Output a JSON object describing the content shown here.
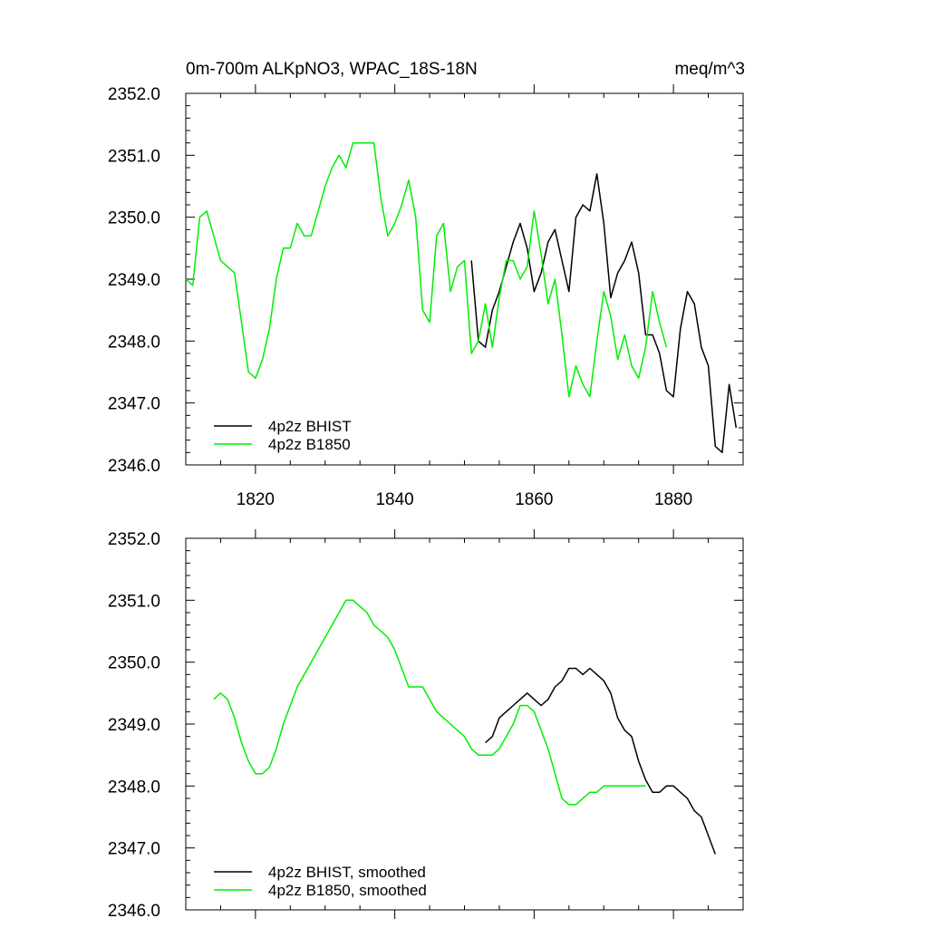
{
  "colors": {
    "bhist": "#000000",
    "b1850": "#00ee00"
  },
  "chart_data": [
    {
      "type": "line",
      "title": "0m-700m ALKpNO3, WPAC_18S-18N",
      "units": "meq/m^3",
      "xlim": [
        1810,
        1890
      ],
      "ylim": [
        2346.0,
        2352.0
      ],
      "x_ticks": [
        1820,
        1840,
        1860,
        1880
      ],
      "x_tick_labels": [
        "1820",
        "1840",
        "1860",
        "1880"
      ],
      "y_ticks": [
        2346.0,
        2347.0,
        2348.0,
        2349.0,
        2350.0,
        2351.0,
        2352.0
      ],
      "y_tick_labels": [
        "2346.0",
        "2347.0",
        "2348.0",
        "2349.0",
        "2350.0",
        "2351.0",
        "2352.0"
      ],
      "legend_position": "bottom-left",
      "series": [
        {
          "name": "4p2z BHIST",
          "color": "#000000",
          "x": [
            1851,
            1852,
            1853,
            1854,
            1855,
            1856,
            1857,
            1858,
            1859,
            1860,
            1861,
            1862,
            1863,
            1864,
            1865,
            1866,
            1867,
            1868,
            1869,
            1870,
            1871,
            1872,
            1873,
            1874,
            1875,
            1876,
            1877,
            1878,
            1879,
            1880,
            1881,
            1882,
            1883,
            1884,
            1885,
            1886,
            1887,
            1888,
            1889
          ],
          "values": [
            2349.3,
            2348.0,
            2347.9,
            2348.5,
            2348.8,
            2349.2,
            2349.6,
            2349.9,
            2349.5,
            2348.8,
            2349.1,
            2349.6,
            2349.8,
            2349.3,
            2348.8,
            2350.0,
            2350.2,
            2350.1,
            2350.7,
            2349.9,
            2348.7,
            2349.1,
            2349.3,
            2349.6,
            2349.1,
            2348.1,
            2348.1,
            2347.8,
            2347.2,
            2347.1,
            2348.2,
            2348.8,
            2348.6,
            2347.9,
            2347.6,
            2346.3,
            2346.2,
            2347.3,
            2346.6
          ]
        },
        {
          "name": "4p2z B1850",
          "color": "#00ee00",
          "x": [
            1810,
            1811,
            1812,
            1813,
            1814,
            1815,
            1816,
            1817,
            1818,
            1819,
            1820,
            1821,
            1822,
            1823,
            1824,
            1825,
            1826,
            1827,
            1828,
            1829,
            1830,
            1831,
            1832,
            1833,
            1834,
            1835,
            1836,
            1837,
            1838,
            1839,
            1840,
            1841,
            1842,
            1843,
            1844,
            1845,
            1846,
            1847,
            1848,
            1849,
            1850,
            1851,
            1852,
            1853,
            1854,
            1855,
            1856,
            1857,
            1858,
            1859,
            1860,
            1861,
            1862,
            1863,
            1864,
            1865,
            1866,
            1867,
            1868,
            1869,
            1870,
            1871,
            1872,
            1873,
            1874,
            1875,
            1876,
            1877,
            1878,
            1879
          ],
          "values": [
            2349.0,
            2348.9,
            2350.0,
            2350.1,
            2349.7,
            2349.3,
            2349.2,
            2349.1,
            2348.3,
            2347.5,
            2347.4,
            2347.7,
            2348.2,
            2349.0,
            2349.5,
            2349.5,
            2349.9,
            2349.7,
            2349.7,
            2350.1,
            2350.5,
            2350.8,
            2351.0,
            2350.8,
            2351.2,
            2351.2,
            2351.2,
            2351.2,
            2350.3,
            2349.7,
            2349.9,
            2350.2,
            2350.6,
            2350.0,
            2348.5,
            2348.3,
            2349.7,
            2349.9,
            2348.8,
            2349.2,
            2349.3,
            2347.8,
            2348.0,
            2348.6,
            2347.9,
            2348.7,
            2349.3,
            2349.3,
            2349.0,
            2349.2,
            2350.1,
            2349.4,
            2348.6,
            2349.0,
            2348.1,
            2347.1,
            2347.6,
            2347.3,
            2347.1,
            2348.0,
            2348.8,
            2348.4,
            2347.7,
            2348.1,
            2347.6,
            2347.4,
            2347.9,
            2348.8,
            2348.3,
            2347.9
          ]
        }
      ]
    },
    {
      "type": "line",
      "title": "",
      "xlim": [
        1810,
        1890
      ],
      "ylim": [
        2346.0,
        2352.0
      ],
      "y_ticks": [
        2346.0,
        2347.0,
        2348.0,
        2349.0,
        2350.0,
        2351.0,
        2352.0
      ],
      "y_tick_labels": [
        "2346.0",
        "2347.0",
        "2348.0",
        "2349.0",
        "2350.0",
        "2351.0",
        "2352.0"
      ],
      "legend_position": "bottom-left",
      "series": [
        {
          "name": "4p2z BHIST, smoothed",
          "color": "#000000",
          "x": [
            1853,
            1854,
            1855,
            1856,
            1857,
            1858,
            1859,
            1860,
            1861,
            1862,
            1863,
            1864,
            1865,
            1866,
            1867,
            1868,
            1869,
            1870,
            1871,
            1872,
            1873,
            1874,
            1875,
            1876,
            1877,
            1878,
            1879,
            1880,
            1881,
            1882,
            1883,
            1884,
            1885,
            1886
          ],
          "values": [
            2348.7,
            2348.8,
            2349.1,
            2349.2,
            2349.3,
            2349.4,
            2349.5,
            2349.4,
            2349.3,
            2349.4,
            2349.6,
            2349.7,
            2349.9,
            2349.9,
            2349.8,
            2349.9,
            2349.8,
            2349.7,
            2349.5,
            2349.1,
            2348.9,
            2348.8,
            2348.4,
            2348.1,
            2347.9,
            2347.9,
            2348.0,
            2348.0,
            2347.9,
            2347.8,
            2347.6,
            2347.5,
            2347.2,
            2346.9
          ]
        },
        {
          "name": "4p2z B1850, smoothed",
          "color": "#00ee00",
          "x": [
            1814,
            1815,
            1816,
            1817,
            1818,
            1819,
            1820,
            1821,
            1822,
            1823,
            1824,
            1825,
            1826,
            1827,
            1828,
            1829,
            1830,
            1831,
            1832,
            1833,
            1834,
            1835,
            1836,
            1837,
            1838,
            1839,
            1840,
            1841,
            1842,
            1843,
            1844,
            1845,
            1846,
            1847,
            1848,
            1849,
            1850,
            1851,
            1852,
            1853,
            1854,
            1855,
            1856,
            1857,
            1858,
            1859,
            1860,
            1861,
            1862,
            1863,
            1864,
            1865,
            1866,
            1867,
            1868,
            1869,
            1870,
            1871,
            1872,
            1873,
            1874,
            1875,
            1876
          ],
          "values": [
            2349.4,
            2349.5,
            2349.4,
            2349.1,
            2348.7,
            2348.4,
            2348.2,
            2348.2,
            2348.3,
            2348.6,
            2349.0,
            2349.3,
            2349.6,
            2349.8,
            2350.0,
            2350.2,
            2350.4,
            2350.6,
            2350.8,
            2351.0,
            2351.0,
            2350.9,
            2350.8,
            2350.6,
            2350.5,
            2350.4,
            2350.2,
            2349.9,
            2349.6,
            2349.6,
            2349.6,
            2349.4,
            2349.2,
            2349.1,
            2349.0,
            2348.9,
            2348.8,
            2348.6,
            2348.5,
            2348.5,
            2348.5,
            2348.6,
            2348.8,
            2349.0,
            2349.3,
            2349.3,
            2349.2,
            2348.9,
            2348.6,
            2348.2,
            2347.8,
            2347.7,
            2347.7,
            2347.8,
            2347.9,
            2347.9,
            2348.0,
            2348.0,
            2348.0,
            2348.0,
            2348.0,
            2348.0,
            2348.0
          ]
        }
      ]
    }
  ]
}
